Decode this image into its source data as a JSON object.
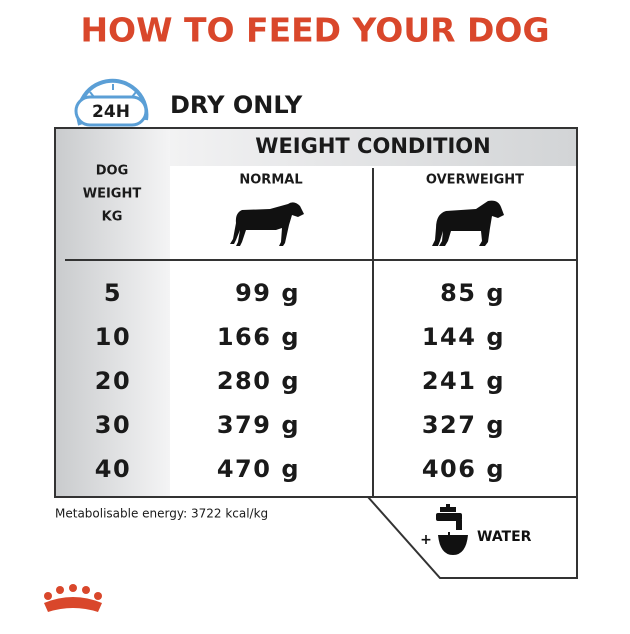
{
  "title": "HOW TO FEED YOUR DOG",
  "badge": "24H",
  "subtitle": "DRY ONLY",
  "table": {
    "row_header": [
      "DOG",
      "WEIGHT",
      "KG"
    ],
    "group_header": "WEIGHT CONDITION",
    "columns": [
      "NORMAL",
      "OVERWEIGHT"
    ],
    "rows": [
      [
        "5",
        "99 g",
        "85 g"
      ],
      [
        "10",
        "166 g",
        "144 g"
      ],
      [
        "20",
        "280 g",
        "241 g"
      ],
      [
        "30",
        "379 g",
        "327 g"
      ],
      [
        "40",
        "470 g",
        "406 g"
      ]
    ]
  },
  "footnote": "Metabolisable energy: 3722 kcal/kg",
  "water": {
    "plus": "+",
    "label": "WATER"
  }
}
